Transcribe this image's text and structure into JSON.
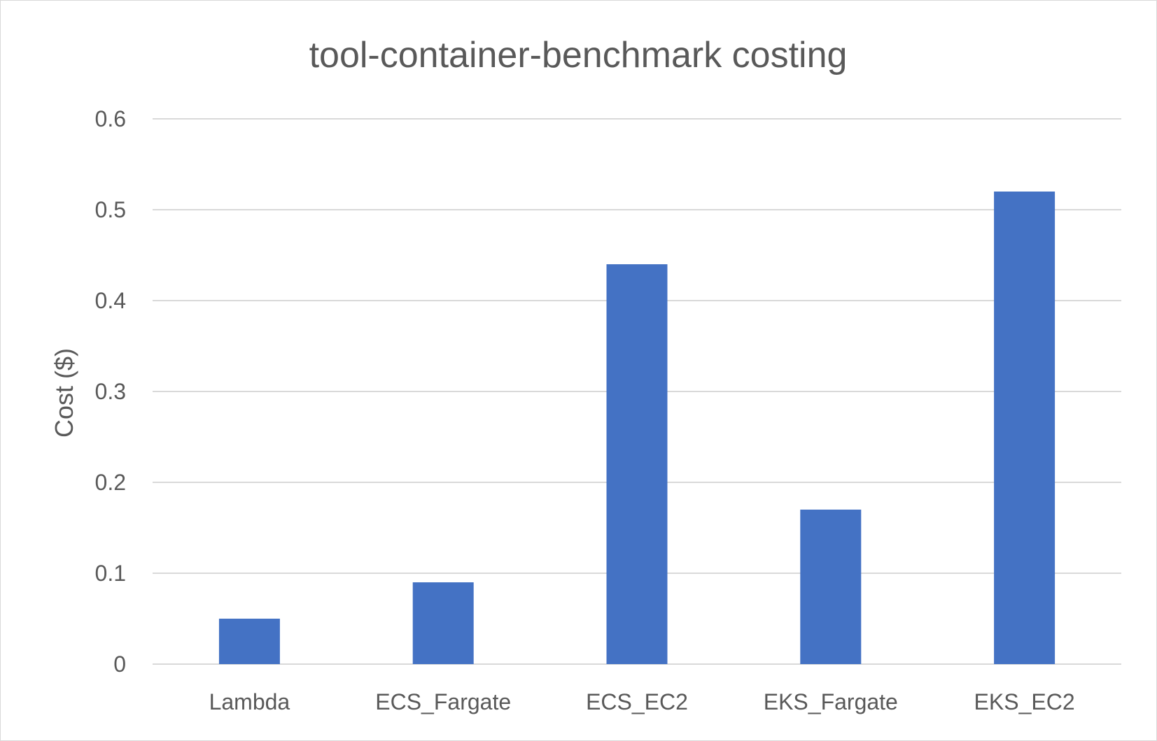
{
  "chart_data": {
    "type": "bar",
    "title": "tool-container-benchmark costing",
    "xlabel": "",
    "ylabel": "Cost ($)",
    "categories": [
      "Lambda",
      "ECS_Fargate",
      "ECS_EC2",
      "EKS_Fargate",
      "EKS_EC2"
    ],
    "values": [
      0.05,
      0.09,
      0.44,
      0.17,
      0.52
    ],
    "ylim": [
      0,
      0.6
    ],
    "yticks": [
      "0",
      "0.1",
      "0.2",
      "0.3",
      "0.4",
      "0.5",
      "0.6"
    ],
    "grid": true,
    "legend": "none",
    "colors": {
      "bar": "#4472c4",
      "grid": "#d9d9d9",
      "text": "#595959"
    }
  }
}
